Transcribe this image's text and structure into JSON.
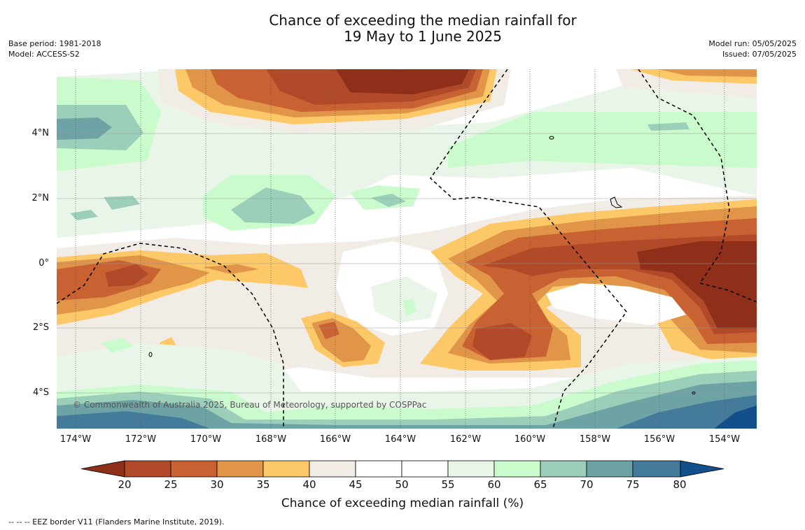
{
  "header": {
    "title_line1": "Chance of exceeding the median rainfall for",
    "title_line2": "19 May to 1 June 2025",
    "base_period": "Base period: 1981-2018",
    "model": "Model: ACCESS-S2",
    "model_run": "Model run: 05/05/2025",
    "issued": "Issued: 07/05/2025"
  },
  "map": {
    "copyright": "© Commonwealth of Australia 2025, Bureau of Meteorology, supported by COSPPac",
    "lat_labels": [
      "4°N",
      "2°N",
      "0°",
      "2°S",
      "4°S"
    ],
    "lon_labels": [
      "174°W",
      "172°W",
      "170°W",
      "168°W",
      "166°W",
      "164°W",
      "162°W",
      "160°W",
      "158°W",
      "156°W",
      "154°W"
    ],
    "colors": {
      "below_20": "#8f2f1a",
      "20_25": "#b04a28",
      "25_30": "#c96232",
      "30_35": "#e09548",
      "35_40": "#fdc968",
      "40_45": "#f1ece6",
      "45_55": "#ffffff",
      "55_60": "#eaf5e9",
      "60_65": "#cafbcc",
      "65_70": "#9ccfb9",
      "70_75": "#6ea3a6",
      "75_80": "#447b9a",
      "above_80": "#134f8b"
    }
  },
  "colorbar": {
    "ticks": [
      "20",
      "25",
      "30",
      "35",
      "40",
      "45",
      "50",
      "55",
      "60",
      "65",
      "70",
      "75",
      "80"
    ],
    "title": "Chance of exceeding median rainfall (%)"
  },
  "footnote": "--  --  -- EEZ border V11 (Flanders Marine Institute, 2019)."
}
